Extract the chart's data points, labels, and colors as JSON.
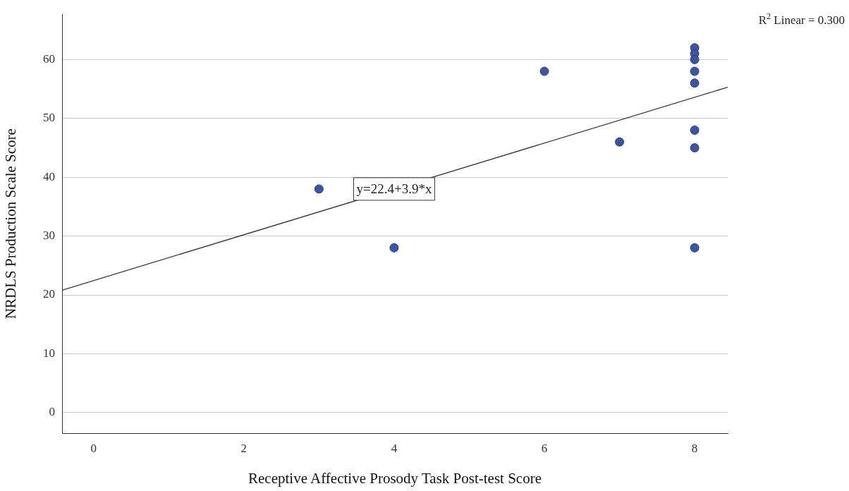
{
  "chart_data": {
    "type": "scatter",
    "xlabel": "Receptive Affective Prosody Task Post-test Score",
    "ylabel": "NRDLS Production Scale Score",
    "xlim": [
      -0.42,
      8.44
    ],
    "xticks": [
      0,
      2,
      4,
      6,
      8
    ],
    "ylim": [
      -3.5,
      67.7
    ],
    "yticks": [
      0,
      10,
      20,
      30,
      40,
      50,
      60
    ],
    "grid": "y",
    "legend": false,
    "marker": "circle",
    "series": [
      {
        "color": "#3a55a4",
        "x": [
          3,
          4,
          6,
          7,
          8,
          8,
          8,
          8,
          8,
          8,
          8,
          8
        ],
        "values": [
          38,
          28,
          58,
          46,
          62,
          61,
          60,
          58,
          56,
          48,
          45,
          28
        ]
      },
      {
        "type": "line",
        "color": "#333333",
        "x": [
          -0.42,
          8.44
        ],
        "values": [
          20.8,
          55.3
        ],
        "line_style": "solid",
        "marker": "none"
      }
    ],
    "annotations": [
      {
        "text": "y=22.4+3.9*x",
        "x": 4,
        "y": 38
      },
      "R$^{2}$ Linear = 0.300"
    ]
  }
}
